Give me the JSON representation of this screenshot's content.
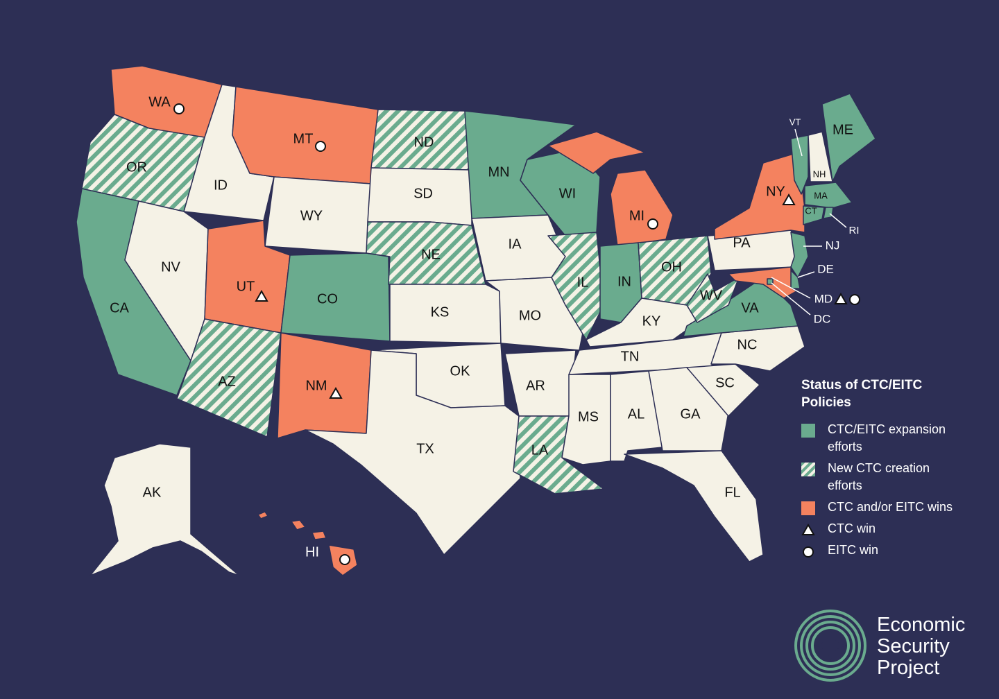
{
  "map": {
    "legend": {
      "title": "Status of CTC/EITC Policies",
      "items": [
        {
          "label": "CTC/EITC expansion efforts",
          "color": "#6aab8e"
        },
        {
          "label": "New CTC creation efforts",
          "color": "#6aab8e",
          "hatched": true
        },
        {
          "label": "CTC and/or EITC wins",
          "color": "#f4825f"
        },
        {
          "label": "CTC win",
          "marker": "triangle"
        },
        {
          "label": "EITC win",
          "marker": "circle"
        }
      ]
    },
    "states": [
      {
        "label": "WA",
        "status": 2,
        "wins": [
          4
        ]
      },
      {
        "label": "OR",
        "status": 1
      },
      {
        "label": "CA",
        "status": 0
      },
      {
        "label": "NV",
        "status": null
      },
      {
        "label": "ID",
        "status": null
      },
      {
        "label": "MT",
        "status": 2,
        "wins": [
          4
        ]
      },
      {
        "label": "WY",
        "status": null
      },
      {
        "label": "UT",
        "status": 2,
        "wins": [
          3
        ]
      },
      {
        "label": "CO",
        "status": 0
      },
      {
        "label": "AZ",
        "status": 1
      },
      {
        "label": "NM",
        "status": 2,
        "wins": [
          3
        ]
      },
      {
        "label": "ND",
        "status": 1
      },
      {
        "label": "SD",
        "status": null
      },
      {
        "label": "NE",
        "status": 1
      },
      {
        "label": "KS",
        "status": null
      },
      {
        "label": "OK",
        "status": null
      },
      {
        "label": "TX",
        "status": null
      },
      {
        "label": "MN",
        "status": 0
      },
      {
        "label": "IA",
        "status": null
      },
      {
        "label": "MO",
        "status": null
      },
      {
        "label": "AR",
        "status": null
      },
      {
        "label": "LA",
        "status": 1
      },
      {
        "label": "WI",
        "status": 0
      },
      {
        "label": "IL",
        "status": 1
      },
      {
        "label": "MI",
        "status": 2,
        "wins": [
          4
        ]
      },
      {
        "label": "IN",
        "status": 0
      },
      {
        "label": "OH",
        "status": 1
      },
      {
        "label": "KY",
        "status": null
      },
      {
        "label": "TN",
        "status": null
      },
      {
        "label": "MS",
        "status": null
      },
      {
        "label": "AL",
        "status": null
      },
      {
        "label": "GA",
        "status": null
      },
      {
        "label": "FL",
        "status": null
      },
      {
        "label": "SC",
        "status": null
      },
      {
        "label": "NC",
        "status": null
      },
      {
        "label": "VA",
        "status": 0
      },
      {
        "label": "WV",
        "status": 1
      },
      {
        "label": "PA",
        "status": null
      },
      {
        "label": "NY",
        "status": 2,
        "wins": [
          3
        ]
      },
      {
        "label": "VT",
        "status": 0
      },
      {
        "label": "NH",
        "status": null
      },
      {
        "label": "ME",
        "status": 0
      },
      {
        "label": "MA",
        "status": 0
      },
      {
        "label": "CT",
        "status": 0
      },
      {
        "label": "RI",
        "status": 0
      },
      {
        "label": "NJ",
        "status": 0
      },
      {
        "label": "DE",
        "status": 0
      },
      {
        "label": "MD",
        "status": 2,
        "wins": [
          3,
          4
        ]
      },
      {
        "label": "DC",
        "status": 0
      },
      {
        "label": "AK",
        "status": null
      },
      {
        "label": "HI",
        "status": 2,
        "wins": [
          4
        ]
      }
    ],
    "logo": "Economic Security Project"
  }
}
